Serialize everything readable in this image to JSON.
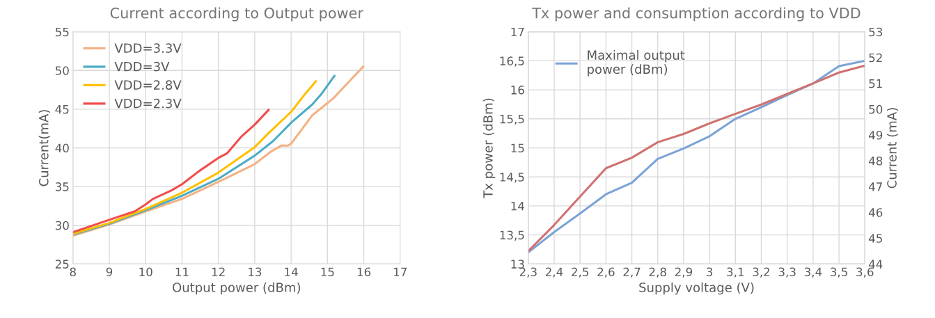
{
  "chart_data": [
    {
      "type": "line",
      "title": "Current according to Output power",
      "xlabel": "Output power (dBm)",
      "ylabel": "Current(mA)",
      "xlim": [
        8,
        17
      ],
      "xticks": [
        8,
        9,
        10,
        11,
        12,
        13,
        14,
        15,
        16,
        17
      ],
      "ylim": [
        25,
        55
      ],
      "yticks": [
        25,
        30,
        35,
        40,
        45,
        50,
        55
      ],
      "grid": true,
      "legend": "top left",
      "series": [
        {
          "name": "VDD=3.3V",
          "color": "#f4b183",
          "x": [
            8,
            9,
            10,
            11,
            12,
            13,
            13.44,
            13.73,
            13.92,
            14.01,
            14.58,
            15.16,
            15.54,
            15.98
          ],
          "values": [
            28.65,
            30.1,
            31.8,
            33.4,
            35.6,
            37.9,
            39.5,
            40.3,
            40.3,
            40.6,
            44.2,
            46.4,
            48.3,
            50.5
          ]
        },
        {
          "name": "VDD=3V",
          "color": "#4bacc6",
          "x": [
            8,
            9,
            10,
            11,
            12,
            13,
            13.51,
            14.01,
            14.58,
            14.84,
            15.19
          ],
          "values": [
            28.8,
            30.2,
            31.95,
            33.8,
            36.0,
            39.0,
            40.9,
            43.3,
            45.6,
            47.0,
            49.3
          ]
        },
        {
          "name": "VDD=2.8V",
          "color": "#ffc000",
          "x": [
            8,
            9,
            10,
            11,
            12,
            13,
            13.38,
            14.01,
            14.39,
            14.68
          ],
          "values": [
            28.9,
            30.3,
            32.1,
            34.2,
            36.8,
            40.1,
            41.9,
            44.7,
            47.0,
            48.6
          ]
        },
        {
          "name": "VDD=2.3V",
          "color": "#f24c4c",
          "x": [
            8,
            9,
            9.7,
            10,
            10.2,
            10.71,
            11,
            11.47,
            12,
            12.24,
            12.62,
            13,
            13.38
          ],
          "values": [
            29.1,
            30.7,
            31.8,
            32.7,
            33.4,
            34.5,
            35.3,
            37.0,
            38.7,
            39.3,
            41.4,
            43.0,
            44.9
          ]
        }
      ]
    },
    {
      "type": "line",
      "title": "Tx power and consumption according to VDD",
      "xlabel": "Supply voltage (V)",
      "ylabel": "Tx power (dBm)",
      "y2label": "Current (mA)",
      "xlim": [
        2.3,
        3.6
      ],
      "xticks": [
        {
          "value": 2.3,
          "label": "2,3"
        },
        {
          "value": 2.4,
          "label": "2,4"
        },
        {
          "value": 2.5,
          "label": "2,5"
        },
        {
          "value": 2.6,
          "label": "2,6"
        },
        {
          "value": 2.7,
          "label": "2,7"
        },
        {
          "value": 2.8,
          "label": "2,8"
        },
        {
          "value": 2.9,
          "label": "2,9"
        },
        {
          "value": 3,
          "label": "3"
        },
        {
          "value": 3.1,
          "label": "3,1"
        },
        {
          "value": 3.2,
          "label": "3,2"
        },
        {
          "value": 3.3,
          "label": "3,3"
        },
        {
          "value": 3.4,
          "label": "3,4"
        },
        {
          "value": 3.5,
          "label": "3,5"
        },
        {
          "value": 3.6,
          "label": "3,6"
        }
      ],
      "ylim": [
        13,
        17
      ],
      "yticks": [
        13,
        {
          "value": 13.5,
          "label": "13,5"
        },
        14,
        {
          "value": 14.5,
          "label": "14,5"
        },
        15,
        {
          "value": 15.5,
          "label": "15,5"
        },
        16,
        {
          "value": 16.5,
          "label": "16,5"
        },
        17
      ],
      "y2lim": [
        44,
        53
      ],
      "y2ticks": [
        44,
        45,
        46,
        47,
        48,
        49,
        50,
        51,
        52,
        53
      ],
      "grid": true,
      "legend": "top left",
      "series": [
        {
          "name": "Maximal output power (dBm)",
          "color": "#7ba3d6",
          "x": [
            2.3,
            2.4,
            2.5,
            2.6,
            2.7,
            2.8,
            2.9,
            3.0,
            3.1,
            3.2,
            3.3,
            3.4,
            3.5,
            3.6
          ],
          "values": [
            13.2,
            13.55,
            13.87,
            14.2,
            14.4,
            14.81,
            14.99,
            15.2,
            15.5,
            15.7,
            15.91,
            16.11,
            16.41,
            16.5
          ]
        },
        {
          "color": "#cf7270",
          "axis": "y2",
          "x": [
            2.3,
            2.4,
            2.5,
            2.6,
            2.7,
            2.8,
            2.9,
            3.0,
            3.1,
            3.2,
            3.3,
            3.4,
            3.5,
            3.6
          ],
          "values": [
            44.5,
            45.51,
            46.61,
            47.71,
            48.12,
            48.72,
            49.04,
            49.45,
            49.82,
            50.18,
            50.59,
            51.0,
            51.42,
            51.69
          ]
        }
      ]
    }
  ]
}
